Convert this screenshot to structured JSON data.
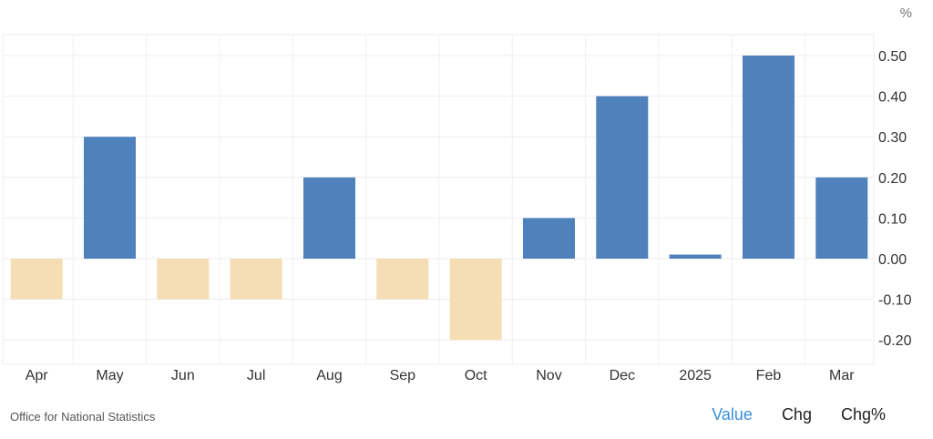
{
  "chart_data": {
    "type": "bar",
    "unit": "%",
    "categories": [
      "Apr",
      "May",
      "Jun",
      "Jul",
      "Aug",
      "Sep",
      "Oct",
      "Nov",
      "Dec",
      "2025",
      "Feb",
      "Mar"
    ],
    "values": [
      -0.1,
      0.3,
      -0.1,
      -0.1,
      0.2,
      -0.1,
      -0.2,
      0.1,
      0.4,
      0.01,
      0.5,
      0.2
    ],
    "ylim": [
      -0.25,
      0.55
    ],
    "yticks": [
      "0.50",
      "0.40",
      "0.30",
      "0.20",
      "0.10",
      "0.00",
      "-0.10",
      "-0.20"
    ],
    "ytick_values": [
      0.5,
      0.4,
      0.3,
      0.2,
      0.1,
      0.0,
      -0.1,
      -0.2
    ],
    "grid": true,
    "colors": {
      "positive": "#4f81bd",
      "negative": "#f5deb3"
    }
  },
  "footer": {
    "source": "Office for National Statistics",
    "tabs": [
      {
        "label": "Value",
        "active": true
      },
      {
        "label": "Chg",
        "active": false
      },
      {
        "label": "Chg%",
        "active": false
      }
    ]
  }
}
